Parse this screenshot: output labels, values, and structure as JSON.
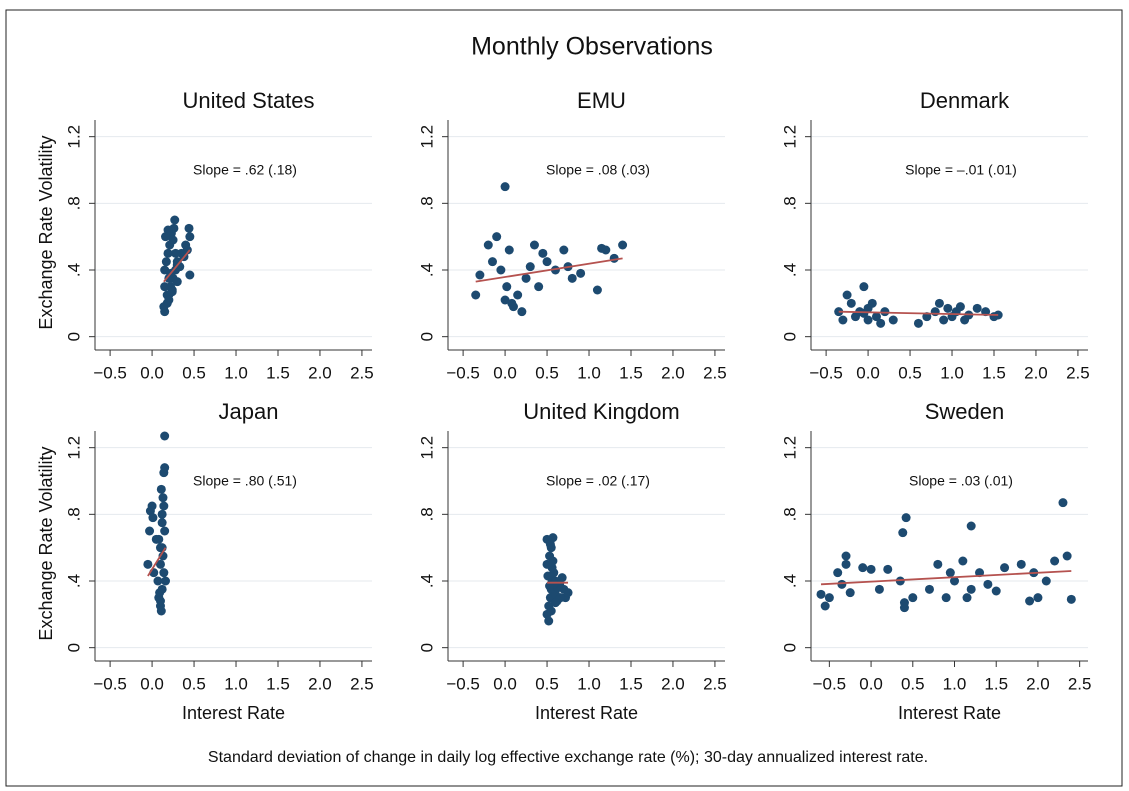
{
  "title": "Monthly Observations",
  "note": "Standard deviation of change in daily log effective exchange rate (%); 30-day annualized interest rate.",
  "chart_data": [
    {
      "type": "scatter",
      "title": "United States",
      "annotation": "Slope = .62 (.18)",
      "ylabel": "Exchange Rate Volatility",
      "color": "#1d4a70",
      "fit_color": "#b5524f",
      "x": [
        0.15,
        0.18,
        0.2,
        0.22,
        0.25,
        0.28,
        0.3,
        0.35,
        0.4,
        0.45,
        0.15,
        0.17,
        0.19,
        0.21,
        0.23,
        0.26,
        0.3,
        0.33,
        0.38,
        0.42,
        0.15,
        0.18,
        0.2,
        0.24,
        0.27,
        0.45,
        0.44,
        0.16,
        0.2,
        0.25,
        0.3,
        0.14,
        0.22,
        0.28,
        0.19,
        0.24
      ],
      "y": [
        0.15,
        0.2,
        0.25,
        0.3,
        0.35,
        0.4,
        0.45,
        0.5,
        0.55,
        0.6,
        0.4,
        0.45,
        0.5,
        0.55,
        0.62,
        0.65,
        0.33,
        0.42,
        0.48,
        0.52,
        0.3,
        0.25,
        0.22,
        0.28,
        0.7,
        0.37,
        0.65,
        0.6,
        0.35,
        0.58,
        0.43,
        0.18,
        0.38,
        0.5,
        0.64,
        0.27
      ],
      "fit": {
        "x": [
          0.14,
          0.45
        ],
        "y": [
          0.33,
          0.52
        ]
      },
      "xlim": [
        -0.68,
        2.62
      ],
      "ylim": [
        -0.05,
        1.3
      ],
      "xticks": [
        {
          "value": -0.5,
          "label": "−0.5"
        },
        {
          "value": 0,
          "label": "0.0"
        },
        0.5,
        {
          "value": 1,
          "label": "1.0"
        },
        1.5,
        {
          "value": 2,
          "label": "2.0"
        },
        2.5
      ],
      "yticks": [
        0,
        {
          "value": 0.4,
          "label": ".4"
        },
        {
          "value": 0.8,
          "label": ".8"
        },
        1.2
      ],
      "grid": true
    },
    {
      "type": "scatter",
      "title": "EMU",
      "annotation": "Slope = .08 (.03)",
      "color": "#1d4a70",
      "fit_color": "#b5524f",
      "x": [
        -0.35,
        -0.3,
        -0.2,
        -0.15,
        -0.1,
        -0.05,
        0,
        0.02,
        0.05,
        0.08,
        0.1,
        0.15,
        0.2,
        0.25,
        0.3,
        0.35,
        0.4,
        0.45,
        0.5,
        0.6,
        0.7,
        0.75,
        0.8,
        0.9,
        1.1,
        1.15,
        1.2,
        1.3,
        1.4,
        0.0
      ],
      "y": [
        0.25,
        0.37,
        0.55,
        0.45,
        0.6,
        0.4,
        0.9,
        0.3,
        0.52,
        0.2,
        0.18,
        0.25,
        0.15,
        0.35,
        0.42,
        0.55,
        0.3,
        0.5,
        0.45,
        0.4,
        0.52,
        0.42,
        0.35,
        0.38,
        0.28,
        0.53,
        0.52,
        0.47,
        0.55,
        0.22
      ],
      "fit": {
        "x": [
          -0.35,
          1.4
        ],
        "y": [
          0.33,
          0.47
        ]
      },
      "xlim": [
        -0.68,
        2.62
      ],
      "ylim": [
        -0.05,
        1.3
      ],
      "xticks": [
        {
          "value": -0.5,
          "label": "−0.5"
        },
        {
          "value": 0,
          "label": "0.0"
        },
        0.5,
        {
          "value": 1,
          "label": "1.0"
        },
        1.5,
        {
          "value": 2,
          "label": "2.0"
        },
        2.5
      ],
      "yticks": [
        0,
        {
          "value": 0.4,
          "label": ".4"
        },
        {
          "value": 0.8,
          "label": ".8"
        },
        1.2
      ],
      "grid": true
    },
    {
      "type": "scatter",
      "title": "Denmark",
      "annotation": "Slope = –.01 (.01)",
      "color": "#1d4a70",
      "fit_color": "#b5524f",
      "x": [
        -0.35,
        -0.3,
        -0.25,
        -0.2,
        -0.15,
        -0.1,
        -0.05,
        0,
        0.05,
        0.1,
        0.15,
        0.2,
        0.3,
        0.6,
        0.7,
        0.8,
        0.85,
        0.9,
        0.95,
        1.0,
        1.05,
        1.1,
        1.15,
        1.2,
        1.3,
        1.4,
        1.5,
        1.55,
        -0.05,
        0.0
      ],
      "y": [
        0.15,
        0.1,
        0.25,
        0.2,
        0.12,
        0.15,
        0.3,
        0.1,
        0.2,
        0.12,
        0.08,
        0.15,
        0.1,
        0.08,
        0.12,
        0.15,
        0.2,
        0.1,
        0.17,
        0.12,
        0.15,
        0.18,
        0.1,
        0.13,
        0.17,
        0.15,
        0.12,
        0.13,
        0.14,
        0.17
      ],
      "fit": {
        "x": [
          -0.35,
          1.55
        ],
        "y": [
          0.15,
          0.13
        ]
      },
      "xlim": [
        -0.68,
        2.62
      ],
      "ylim": [
        -0.05,
        1.3
      ],
      "xticks": [
        {
          "value": -0.5,
          "label": "−0.5"
        },
        {
          "value": 0,
          "label": "0.0"
        },
        0.5,
        {
          "value": 1,
          "label": "1.0"
        },
        1.5,
        {
          "value": 2,
          "label": "2.0"
        },
        2.5
      ],
      "yticks": [
        0,
        {
          "value": 0.4,
          "label": ".4"
        },
        {
          "value": 0.8,
          "label": ".8"
        },
        1.2
      ],
      "grid": true
    },
    {
      "type": "scatter",
      "title": "Japan",
      "annotation": "Slope = .80 (.51)",
      "ylabel": "Exchange Rate Volatility",
      "xlabel": "Interest Rate",
      "color": "#1d4a70",
      "fit_color": "#b5524f",
      "x": [
        -0.05,
        -0.03,
        0,
        0.02,
        0.05,
        0.07,
        0.08,
        0.1,
        0.1,
        0.12,
        0.12,
        0.13,
        0.14,
        0.15,
        0.15,
        0.1,
        0.11,
        0.12,
        0.13,
        0.14,
        0.08,
        0.09,
        0.1,
        0.11,
        0.15,
        0.16,
        0.12,
        0.14,
        -0.02,
        0.01
      ],
      "y": [
        0.5,
        0.7,
        0.85,
        0.45,
        0.65,
        0.4,
        0.3,
        0.25,
        0.6,
        0.35,
        0.75,
        0.9,
        1.05,
        1.08,
        1.27,
        0.5,
        0.22,
        0.8,
        0.55,
        0.45,
        0.65,
        0.33,
        0.28,
        0.95,
        0.7,
        0.4,
        0.6,
        0.85,
        0.82,
        0.78
      ],
      "fit": {
        "x": [
          -0.05,
          0.16
        ],
        "y": [
          0.43,
          0.6
        ]
      },
      "xlim": [
        -0.68,
        2.62
      ],
      "ylim": [
        -0.05,
        1.3
      ],
      "xticks": [
        {
          "value": -0.5,
          "label": "−0.5"
        },
        {
          "value": 0,
          "label": "0.0"
        },
        0.5,
        {
          "value": 1,
          "label": "1.0"
        },
        1.5,
        {
          "value": 2,
          "label": "2.0"
        },
        2.5
      ],
      "yticks": [
        0,
        {
          "value": 0.4,
          "label": ".4"
        },
        {
          "value": 0.8,
          "label": ".8"
        },
        1.2
      ],
      "grid": true
    },
    {
      "type": "scatter",
      "title": "United Kingdom",
      "annotation": "Slope = .02 (.17)",
      "xlabel": "Interest Rate",
      "color": "#1d4a70",
      "fit_color": "#b5524f",
      "x": [
        0.5,
        0.52,
        0.54,
        0.55,
        0.56,
        0.58,
        0.6,
        0.62,
        0.65,
        0.68,
        0.7,
        0.72,
        0.75,
        0.5,
        0.53,
        0.55,
        0.57,
        0.6,
        0.63,
        0.66,
        0.52,
        0.55,
        0.58,
        0.5,
        0.54,
        0.56,
        0.6,
        0.51,
        0.53,
        0.57
      ],
      "y": [
        0.2,
        0.25,
        0.3,
        0.35,
        0.4,
        0.45,
        0.32,
        0.28,
        0.38,
        0.42,
        0.35,
        0.3,
        0.33,
        0.5,
        0.55,
        0.6,
        0.66,
        0.4,
        0.36,
        0.3,
        0.16,
        0.22,
        0.38,
        0.65,
        0.62,
        0.48,
        0.27,
        0.43,
        0.37,
        0.52
      ],
      "fit": {
        "x": [
          0.5,
          0.75
        ],
        "y": [
          0.39,
          0.39
        ]
      },
      "xlim": [
        -0.68,
        2.62
      ],
      "ylim": [
        -0.05,
        1.3
      ],
      "xticks": [
        {
          "value": -0.5,
          "label": "−0.5"
        },
        {
          "value": 0,
          "label": "0.0"
        },
        0.5,
        {
          "value": 1,
          "label": "1.0"
        },
        1.5,
        {
          "value": 2,
          "label": "2.0"
        },
        2.5
      ],
      "yticks": [
        0,
        {
          "value": 0.4,
          "label": ".4"
        },
        {
          "value": 0.8,
          "label": ".8"
        },
        1.2
      ],
      "grid": true
    },
    {
      "type": "scatter",
      "title": "Sweden",
      "annotation": "Slope = .03 (.01)",
      "xlabel": "Interest Rate",
      "color": "#1d4a70",
      "fit_color": "#b5524f",
      "x": [
        -0.6,
        -0.55,
        -0.5,
        -0.4,
        -0.35,
        -0.3,
        -0.25,
        -0.1,
        0,
        0.1,
        0.2,
        0.35,
        0.38,
        0.4,
        0.42,
        0.5,
        0.7,
        0.8,
        0.9,
        0.95,
        1.0,
        1.1,
        1.15,
        1.2,
        1.3,
        1.4,
        1.5,
        1.6,
        1.8,
        1.9,
        1.95,
        2.0,
        2.1,
        2.2,
        2.3,
        2.35,
        2.4,
        1.2,
        0.4,
        -0.3
      ],
      "y": [
        0.32,
        0.25,
        0.3,
        0.45,
        0.38,
        0.55,
        0.33,
        0.48,
        0.47,
        0.35,
        0.47,
        0.4,
        0.69,
        0.24,
        0.78,
        0.3,
        0.35,
        0.5,
        0.3,
        0.45,
        0.4,
        0.52,
        0.3,
        0.73,
        0.45,
        0.38,
        0.34,
        0.48,
        0.5,
        0.28,
        0.45,
        0.3,
        0.4,
        0.52,
        0.87,
        0.55,
        0.29,
        0.35,
        0.27,
        0.5
      ],
      "fit": {
        "x": [
          -0.6,
          2.4
        ],
        "y": [
          0.38,
          0.46
        ]
      },
      "xlim": [
        -0.72,
        2.6
      ],
      "ylim": [
        -0.05,
        1.3
      ],
      "xticks": [
        {
          "value": -0.5,
          "label": "−0.5"
        },
        {
          "value": 0,
          "label": "0.0"
        },
        0.5,
        {
          "value": 1,
          "label": "1.0"
        },
        1.5,
        {
          "value": 2,
          "label": "2.0"
        },
        2.5
      ],
      "yticks": [
        0,
        {
          "value": 0.4,
          "label": ".4"
        },
        {
          "value": 0.8,
          "label": ".8"
        },
        1.2
      ],
      "grid": true
    }
  ]
}
